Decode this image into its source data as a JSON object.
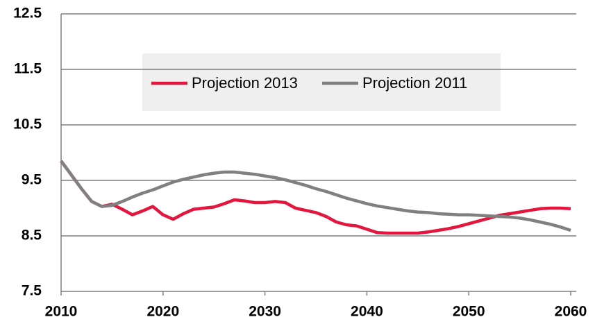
{
  "chart_data": {
    "type": "line",
    "x": [
      2010,
      2011,
      2012,
      2013,
      2014,
      2015,
      2016,
      2017,
      2018,
      2019,
      2020,
      2021,
      2022,
      2023,
      2024,
      2025,
      2026,
      2027,
      2028,
      2029,
      2030,
      2031,
      2032,
      2033,
      2034,
      2035,
      2036,
      2037,
      2038,
      2039,
      2040,
      2041,
      2042,
      2043,
      2044,
      2045,
      2046,
      2047,
      2048,
      2049,
      2050,
      2051,
      2052,
      2053,
      2054,
      2055,
      2056,
      2057,
      2058,
      2059,
      2060
    ],
    "series": [
      {
        "name": "Projection 2013",
        "color": "#e3173e",
        "values": [
          9.85,
          9.6,
          9.35,
          9.12,
          9.03,
          9.07,
          8.98,
          8.88,
          8.95,
          9.03,
          8.88,
          8.8,
          8.9,
          8.98,
          9.0,
          9.02,
          9.08,
          9.15,
          9.13,
          9.1,
          9.1,
          9.12,
          9.1,
          9.0,
          8.96,
          8.92,
          8.85,
          8.75,
          8.7,
          8.68,
          8.62,
          8.56,
          8.55,
          8.55,
          8.55,
          8.55,
          8.57,
          8.6,
          8.63,
          8.67,
          8.72,
          8.77,
          8.82,
          8.87,
          8.9,
          8.93,
          8.96,
          8.99,
          9.0,
          9.0,
          8.99
        ]
      },
      {
        "name": "Projection 2011",
        "color": "#808080",
        "values": [
          9.85,
          9.6,
          9.35,
          9.12,
          9.03,
          9.05,
          9.12,
          9.2,
          9.27,
          9.33,
          9.4,
          9.47,
          9.52,
          9.56,
          9.6,
          9.63,
          9.65,
          9.65,
          9.63,
          9.61,
          9.58,
          9.55,
          9.51,
          9.46,
          9.41,
          9.35,
          9.3,
          9.24,
          9.18,
          9.13,
          9.08,
          9.04,
          9.01,
          8.98,
          8.95,
          8.93,
          8.92,
          8.9,
          8.89,
          8.88,
          8.88,
          8.87,
          8.86,
          8.85,
          8.84,
          8.82,
          8.79,
          8.75,
          8.71,
          8.66,
          8.6
        ]
      }
    ],
    "xlim": [
      2010,
      2060
    ],
    "xticks": [
      2010,
      2020,
      2030,
      2040,
      2050,
      2060
    ],
    "ylim": [
      7.5,
      12.5
    ],
    "yticks": [
      7.5,
      8.5,
      9.5,
      10.5,
      11.5,
      12.5
    ],
    "grid": true
  }
}
